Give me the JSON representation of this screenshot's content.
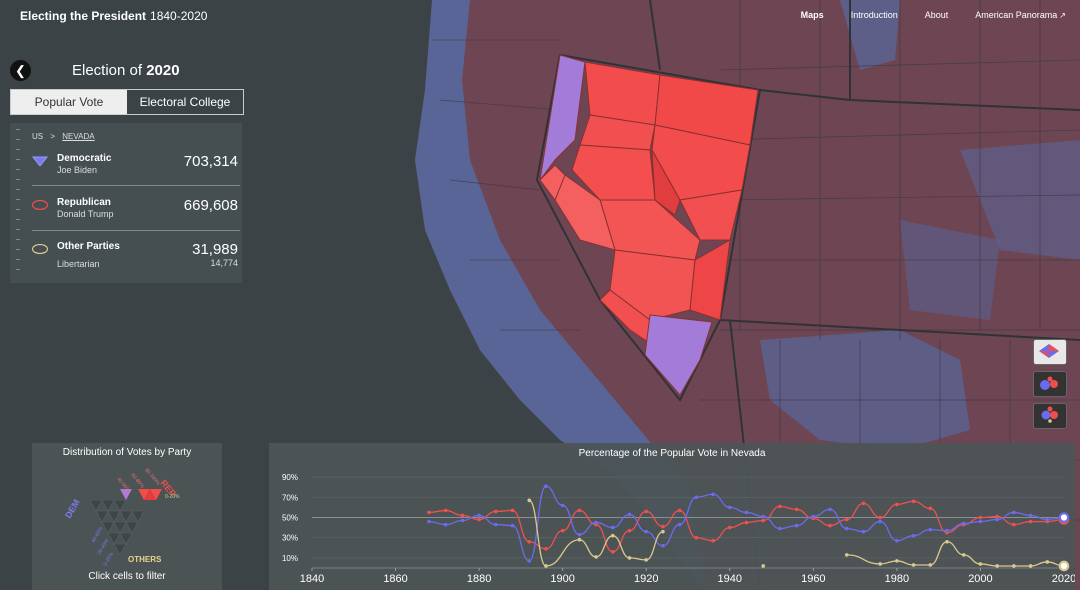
{
  "app": {
    "title": "Electing the President",
    "years": "1840-2020"
  },
  "nav": [
    {
      "label": "Maps",
      "active": true
    },
    {
      "label": "Introduction",
      "active": false
    },
    {
      "label": "About",
      "active": false
    },
    {
      "label": "American Panorama",
      "active": false,
      "external": true
    }
  ],
  "election": {
    "prefix": "Election of",
    "year": "2020"
  },
  "tabs": {
    "popular": "Popular Vote",
    "electoral": "Electoral College"
  },
  "breadcrumb": {
    "root": "US",
    "sep": ">",
    "state": "NEVADA"
  },
  "results": [
    {
      "party": "Democratic",
      "candidate": "Joe Biden",
      "votes": "703,314",
      "color": "#7b7bef"
    },
    {
      "party": "Republican",
      "candidate": "Donald Trump",
      "votes": "669,608",
      "color": "#f24c4c"
    },
    {
      "party": "Other Parties",
      "candidate": "Libertarian",
      "votes": "31,989",
      "sub_votes": "14,774",
      "color": "#d9c98c"
    }
  ],
  "distribution": {
    "title": "Distribution of Votes by Party",
    "dem_label": "DEM",
    "rep_label": "REP",
    "others_label": "OTHERS",
    "footer": "Click cells to filter",
    "rep_ticks": [
      "40-60%",
      "60-80%",
      "80-100%"
    ],
    "dem_ticks": [
      "40-60%",
      "20-40%",
      "0-20%"
    ],
    "others_tick": "0-20%"
  },
  "chart_data": {
    "type": "line",
    "title": "Percentage of the Popular Vote in Nevada",
    "xlabel": "",
    "ylabel": "",
    "xlim": [
      1840,
      2020
    ],
    "ylim": [
      0,
      100
    ],
    "x_ticks": [
      1840,
      1860,
      1880,
      1900,
      1920,
      1940,
      1960,
      1980,
      2000,
      2020
    ],
    "y_ticks": [
      "10%",
      "30%",
      "50%",
      "70%",
      "90%"
    ],
    "y_tick_values": [
      10,
      30,
      50,
      70,
      90
    ],
    "grid": true,
    "series": [
      {
        "color": "#ef5050",
        "points": [
          [
            1868,
            55
          ],
          [
            1872,
            57
          ],
          [
            1876,
            52
          ],
          [
            1880,
            48
          ],
          [
            1884,
            56
          ],
          [
            1888,
            57
          ],
          [
            1892,
            26
          ],
          [
            1896,
            19
          ],
          [
            1900,
            37
          ],
          [
            1904,
            57
          ],
          [
            1908,
            43
          ],
          [
            1912,
            16
          ],
          [
            1916,
            37
          ],
          [
            1920,
            56
          ],
          [
            1924,
            41
          ],
          [
            1928,
            57
          ],
          [
            1932,
            30
          ],
          [
            1936,
            27
          ],
          [
            1940,
            40
          ],
          [
            1944,
            45
          ],
          [
            1948,
            47
          ],
          [
            1952,
            61
          ],
          [
            1956,
            58
          ],
          [
            1960,
            49
          ],
          [
            1964,
            42
          ],
          [
            1968,
            48
          ],
          [
            1972,
            64
          ],
          [
            1976,
            50
          ],
          [
            1980,
            63
          ],
          [
            1984,
            66
          ],
          [
            1988,
            59
          ],
          [
            1992,
            35
          ],
          [
            1996,
            43
          ],
          [
            2000,
            50
          ],
          [
            2004,
            51
          ],
          [
            2008,
            43
          ],
          [
            2012,
            46
          ],
          [
            2016,
            46
          ],
          [
            2020,
            48
          ]
        ]
      },
      {
        "color": "#6b6bef",
        "points": [
          [
            1868,
            46
          ],
          [
            1872,
            43
          ],
          [
            1876,
            47
          ],
          [
            1880,
            52
          ],
          [
            1884,
            43
          ],
          [
            1888,
            42
          ],
          [
            1892,
            7
          ],
          [
            1896,
            81
          ],
          [
            1900,
            62
          ],
          [
            1904,
            33
          ],
          [
            1908,
            45
          ],
          [
            1912,
            40
          ],
          [
            1916,
            53
          ],
          [
            1920,
            36
          ],
          [
            1924,
            22
          ],
          [
            1928,
            43
          ],
          [
            1932,
            70
          ],
          [
            1936,
            73
          ],
          [
            1940,
            60
          ],
          [
            1944,
            55
          ],
          [
            1948,
            51
          ],
          [
            1952,
            39
          ],
          [
            1956,
            42
          ],
          [
            1960,
            51
          ],
          [
            1964,
            58
          ],
          [
            1968,
            39
          ],
          [
            1972,
            36
          ],
          [
            1976,
            46
          ],
          [
            1980,
            27
          ],
          [
            1984,
            32
          ],
          [
            1988,
            38
          ],
          [
            1992,
            37
          ],
          [
            1996,
            44
          ],
          [
            2000,
            46
          ],
          [
            2004,
            48
          ],
          [
            2008,
            55
          ],
          [
            2012,
            52
          ],
          [
            2016,
            48
          ],
          [
            2020,
            50
          ]
        ]
      },
      {
        "color": "#d9c98c",
        "points": [
          [
            1892,
            67
          ],
          [
            1896,
            2
          ],
          [
            1904,
            28
          ],
          [
            1908,
            11
          ],
          [
            1912,
            32
          ],
          [
            1916,
            10
          ],
          [
            1920,
            8
          ],
          [
            1924,
            36
          ],
          [
            1948,
            2
          ],
          [
            1968,
            13
          ],
          [
            1976,
            4
          ],
          [
            1980,
            7
          ],
          [
            1984,
            3
          ],
          [
            1988,
            3
          ],
          [
            1992,
            26
          ],
          [
            1996,
            13
          ],
          [
            2000,
            4
          ],
          [
            2004,
            2
          ],
          [
            2008,
            2
          ],
          [
            2012,
            2
          ],
          [
            2016,
            6
          ],
          [
            2020,
            2
          ]
        ]
      }
    ]
  }
}
